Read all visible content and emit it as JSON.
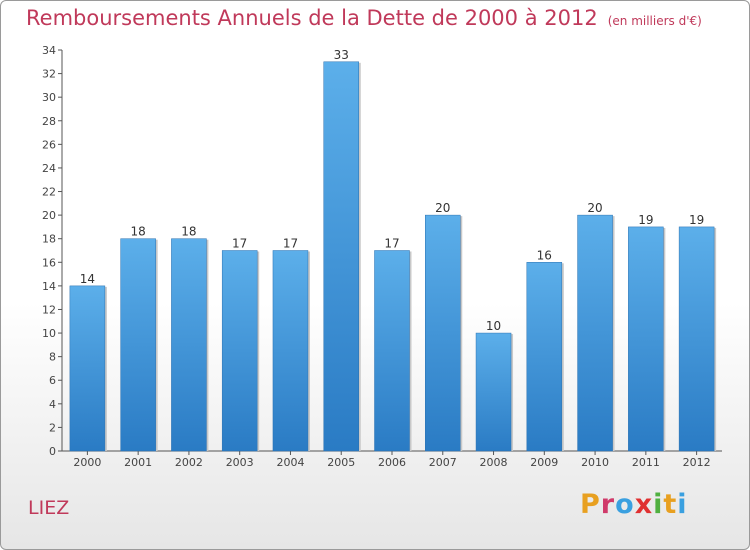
{
  "chart_data": {
    "type": "bar",
    "title": "Remboursements Annuels de la Dette de 2000 à 2012",
    "subtitle": "(en milliers d'€)",
    "categories": [
      "2000",
      "2001",
      "2002",
      "2003",
      "2004",
      "2005",
      "2006",
      "2007",
      "2008",
      "2009",
      "2010",
      "2011",
      "2012"
    ],
    "values": [
      14,
      18,
      18,
      17,
      17,
      33,
      17,
      20,
      10,
      16,
      20,
      19,
      19
    ],
    "ylim": [
      0,
      34
    ],
    "yticks": [
      0,
      2,
      4,
      6,
      8,
      10,
      12,
      14,
      16,
      18,
      20,
      22,
      24,
      26,
      28,
      30,
      32,
      34
    ],
    "grid": false,
    "bar_color": "#3a8fd6"
  },
  "footer": {
    "commune": "LIEZ",
    "logo_letters": [
      "P",
      "r",
      "o",
      "x",
      "i",
      "t",
      "i"
    ],
    "logo_colors": [
      "#e8a020",
      "#d03a6a",
      "#3aa0e0",
      "#e03030",
      "#50b040",
      "#e8a020",
      "#3aa0e0"
    ]
  }
}
